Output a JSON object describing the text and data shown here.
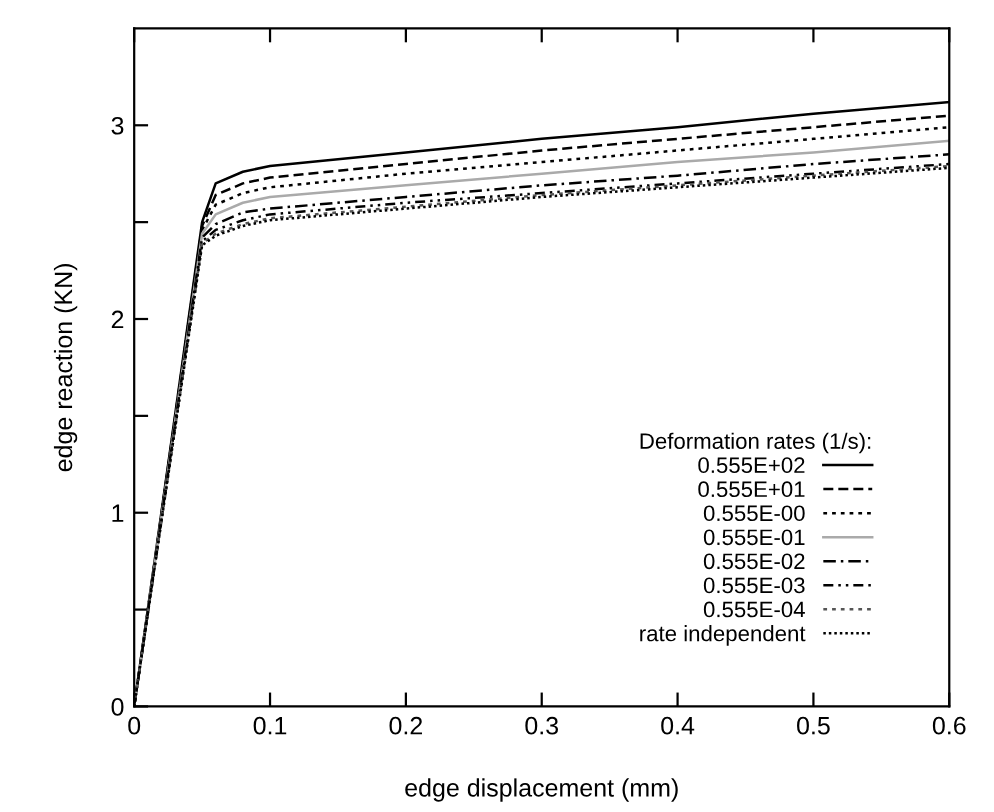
{
  "chart_data": {
    "type": "line",
    "xlabel": "edge displacement (mm)",
    "ylabel": "edge reaction (KN)",
    "legend_title": "Deformation rates (1/s):",
    "x": [
      0,
      0.05,
      0.06,
      0.08,
      0.1,
      0.2,
      0.3,
      0.4,
      0.5,
      0.6
    ],
    "xlim": [
      0,
      0.6
    ],
    "xticks": [
      0,
      0.1,
      0.2,
      0.3,
      0.4,
      0.5,
      0.6
    ],
    "ylim": [
      0,
      3.5
    ],
    "yticks": [
      0,
      {
        "value": 0.5,
        "label": null
      },
      1,
      {
        "value": 1.5,
        "label": null
      },
      2,
      {
        "value": 2.5,
        "label": null
      },
      3
    ],
    "grid": false,
    "legend": "bottom right",
    "marker": "none",
    "series": [
      {
        "name": "0.555E+02",
        "color": "#000000",
        "line_style": "solid",
        "values": [
          0,
          2.5,
          2.7,
          2.76,
          2.79,
          2.86,
          2.93,
          2.99,
          3.06,
          3.12
        ]
      },
      {
        "name": "0.555E+01",
        "color": "#000000",
        "line_style": "dashed",
        "values": [
          0,
          2.48,
          2.64,
          2.7,
          2.73,
          2.8,
          2.87,
          2.93,
          2.99,
          3.05
        ]
      },
      {
        "name": "0.555E-00",
        "color": "#000000",
        "line_style": "dotted",
        "values": [
          0,
          2.46,
          2.59,
          2.65,
          2.68,
          2.75,
          2.81,
          2.87,
          2.93,
          2.99
        ]
      },
      {
        "name": "0.555E-01",
        "color": "#aaaaaa",
        "line_style": "solid",
        "values": [
          0,
          2.44,
          2.54,
          2.6,
          2.63,
          2.69,
          2.75,
          2.81,
          2.86,
          2.92
        ]
      },
      {
        "name": "0.555E-02",
        "color": "#000000",
        "line_style": "dashdot",
        "values": [
          0,
          2.42,
          2.49,
          2.55,
          2.57,
          2.63,
          2.69,
          2.74,
          2.8,
          2.85
        ]
      },
      {
        "name": "0.555E-03",
        "color": "#000000",
        "line_style": "dashdotdot",
        "values": [
          0,
          2.4,
          2.46,
          2.51,
          2.54,
          2.6,
          2.65,
          2.7,
          2.75,
          2.8
        ]
      },
      {
        "name": "0.555E-04",
        "color": "#555555",
        "line_style": "dotted",
        "values": [
          0,
          2.39,
          2.44,
          2.49,
          2.52,
          2.58,
          2.64,
          2.69,
          2.74,
          2.79
        ]
      },
      {
        "name": "rate independent",
        "color": "#000000",
        "line_style": "densedotted",
        "values": [
          0,
          2.38,
          2.43,
          2.48,
          2.51,
          2.57,
          2.63,
          2.68,
          2.73,
          2.78
        ]
      }
    ]
  }
}
